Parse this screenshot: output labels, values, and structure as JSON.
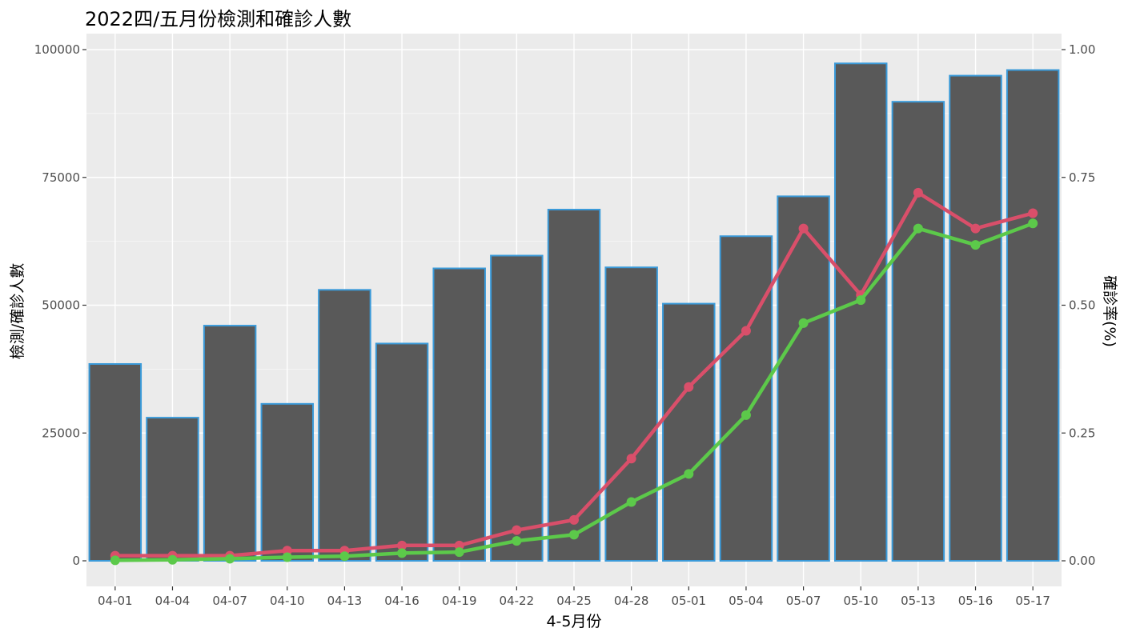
{
  "chart_data": {
    "type": "bar",
    "title": "2022四/五月份檢測和確診人數",
    "xlabel": "4-5月份",
    "ylabel": "檢測/確診人數",
    "y2label": "確診率(%)",
    "categories": [
      "04-01",
      "04-04",
      "04-07",
      "04-10",
      "04-13",
      "04-16",
      "04-19",
      "04-22",
      "04-25",
      "04-28",
      "05-01",
      "05-04",
      "05-07",
      "05-10",
      "05-13",
      "05-16",
      "05-17"
    ],
    "ylim": [
      0,
      100000
    ],
    "y2lim": [
      0,
      1.0
    ],
    "y_ticks": [
      "0",
      "25000",
      "50000",
      "75000",
      "100000"
    ],
    "y2_ticks": [
      "0.00",
      "0.25",
      "0.50",
      "0.75",
      "1.00"
    ],
    "grid": true,
    "series": [
      {
        "type": "bar",
        "axis": "left",
        "color": "#595959",
        "edge_color": "#3a9ad9",
        "values": [
          38500,
          28000,
          46000,
          30700,
          53000,
          42500,
          57200,
          59700,
          68700,
          57400,
          50300,
          63500,
          71300,
          97300,
          89800,
          94900,
          96000
        ]
      },
      {
        "type": "line",
        "axis": "right",
        "color": "#d94f6a",
        "values": [
          0.01,
          0.01,
          0.01,
          0.02,
          0.02,
          0.03,
          0.03,
          0.06,
          0.08,
          0.2,
          0.34,
          0.45,
          0.65,
          0.52,
          0.72,
          0.65,
          0.68
        ]
      },
      {
        "type": "line",
        "axis": "right",
        "color": "#5cc94a",
        "values": [
          0.001,
          0.002,
          0.004,
          0.007,
          0.009,
          0.015,
          0.017,
          0.039,
          0.051,
          0.115,
          0.17,
          0.285,
          0.465,
          0.51,
          0.65,
          0.618,
          0.66
        ]
      }
    ],
    "colors": {
      "panel": "#ebebeb",
      "grid": "#ffffff",
      "bar_fill": "#595959",
      "bar_edge": "#3a9ad9"
    }
  }
}
